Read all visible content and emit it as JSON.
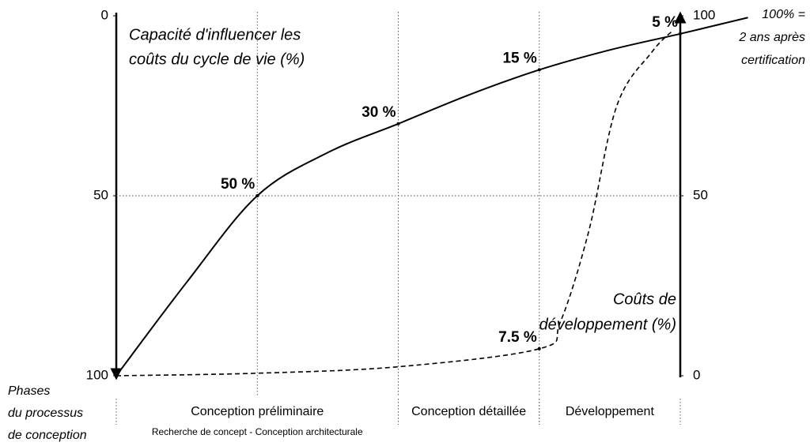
{
  "chart_data": {
    "type": "line",
    "xlim": [
      0,
      4
    ],
    "ylim": [
      0,
      100
    ],
    "yticks": [
      0,
      50,
      100
    ],
    "y_inverted": true,
    "y2lim": [
      0,
      100
    ],
    "y2ticks": [
      0,
      50,
      100
    ],
    "xgrid": [
      1,
      2,
      3
    ],
    "grid": true,
    "series": [
      {
        "name": [
          "Capacité d'influencer les",
          "coûts du cycle de vie (%)"
        ],
        "color": "#000000",
        "dash": false,
        "x": [
          0,
          0.5,
          1,
          1.5,
          2,
          2.5,
          3,
          3.5,
          4,
          4.48
        ],
        "values": [
          100,
          74,
          50,
          38,
          30,
          22,
          15,
          9.5,
          5,
          0.5
        ],
        "value_labels": [
          null,
          null,
          "50 %",
          null,
          "30 %",
          null,
          "15 %",
          null,
          "5 %",
          null
        ]
      },
      {
        "name": [
          "Coûts de",
          "développement (%)"
        ],
        "color": "#000000",
        "dash": true,
        "axis": "y2",
        "x": [
          0,
          1,
          2,
          3,
          3.15,
          3.35,
          3.55,
          3.8,
          3.95
        ],
        "values": [
          0,
          0.7,
          2.5,
          7.5,
          15,
          40,
          75,
          90,
          96
        ],
        "value_labels": [
          null,
          null,
          null,
          "7.5 %",
          null,
          null,
          null,
          null,
          null
        ]
      }
    ],
    "note": [
      "100% =",
      "2 ans après",
      "certification"
    ],
    "phase_title": [
      "Phases",
      "du processus",
      "de conception"
    ],
    "phases": [
      {
        "label": "Conception préliminaire",
        "start": 0,
        "end": 2,
        "sublabel": "Recherche de concept - Conception architecturale"
      },
      {
        "label": "Conception détaillée",
        "start": 2,
        "end": 3
      },
      {
        "label": "Développement",
        "start": 3,
        "end": 4
      }
    ]
  }
}
